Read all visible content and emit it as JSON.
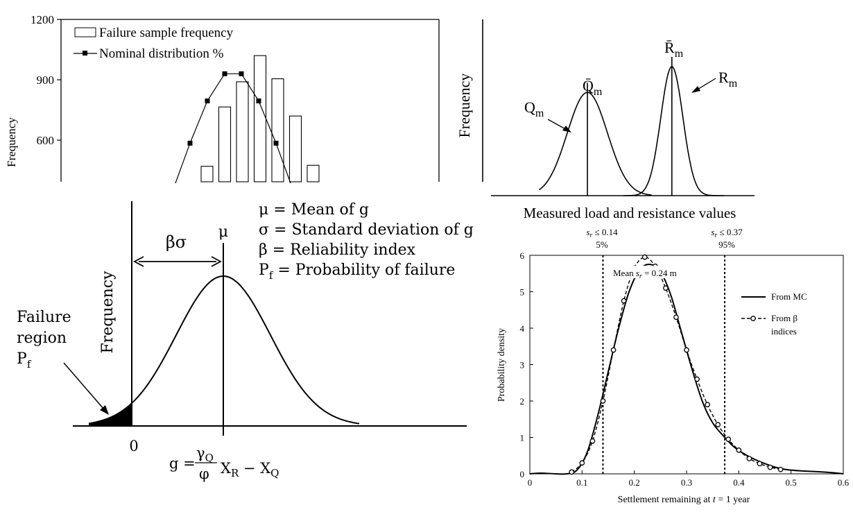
{
  "chart_data": [
    {
      "type": "bar",
      "ylabel": "Frequency",
      "y_ticks": [
        "1200",
        "900",
        "600"
      ],
      "ylim": [
        400,
        1200
      ],
      "legend_position": "top-left",
      "legend": {
        "bars": "Failure sample frequency",
        "line": "Nominal distribution %"
      },
      "series": [
        {
          "name": "Failure sample frequency",
          "kind": "bar",
          "values": [
            470,
            765,
            890,
            1020,
            905,
            720,
            475
          ]
        },
        {
          "name": "Nominal distribution %",
          "kind": "line",
          "values": [
            585,
            795,
            930,
            930,
            795,
            585
          ]
        }
      ]
    },
    {
      "type": "line",
      "ylabel": "Frequency",
      "xlabel": "Measured load and resistance values",
      "labels": {
        "q_mean": "Q̄",
        "r_mean": "R̄",
        "q_curve": "Q",
        "r_curve": "R",
        "subscript": "m"
      },
      "series": [
        {
          "name": "Qm",
          "mean": 0.3,
          "relative_peak": 0.8
        },
        {
          "name": "Rm",
          "mean": 0.72,
          "relative_peak": 1.0
        }
      ]
    },
    {
      "type": "area",
      "ylabel": "Frequency",
      "x_origin_label": "0",
      "mean_label": "μ",
      "bs_label": "βσ",
      "definitions": [
        "μ = Mean of g",
        "σ = Standard deviation of g",
        "β = Reliability index",
        "P",
        "f",
        " = Probability of failure"
      ],
      "failure_region": {
        "line1": "Failure",
        "line2": "region",
        "p": "P",
        "sub": "f"
      },
      "formula": {
        "g": "g =",
        "gamma": "γ",
        "gamma_sub": "Q",
        "phi": "φ",
        "x": "X",
        "x_sub_r": "R",
        "minus": " − X",
        "x_sub_q": "Q"
      }
    },
    {
      "type": "line",
      "xlabel_prefix": "Settlement remaining at ",
      "xlabel_t": "t",
      "xlabel_suffix": " = 1 year",
      "ylabel": "Probability density",
      "xlim": [
        0,
        0.6
      ],
      "ylim": [
        0,
        6
      ],
      "x_ticks": [
        "0",
        "0.1",
        "0.2",
        "0.3",
        "0.4",
        "0.5",
        "0.6"
      ],
      "y_ticks": [
        "0",
        "1",
        "2",
        "3",
        "4",
        "5",
        "6"
      ],
      "annotations": {
        "lower_s": "s",
        "lower_r": "r",
        "lower_val": " ≤ 0.14",
        "lower_pct": "5%",
        "upper_s": "s",
        "upper_r": "r",
        "upper_val": " ≤ 0.37",
        "upper_pct": "95%",
        "mean_a": "Mean ",
        "mean_s": "s",
        "mean_r": "r",
        "mean_b": " = 0.24 m"
      },
      "vlines": [
        0.14,
        0.373
      ],
      "legend_position": "right",
      "legend": {
        "mc": "From MC",
        "beta_line1": "From β",
        "beta_line2": "indices"
      },
      "series": [
        {
          "name": "From MC",
          "x": [
            0,
            0.02,
            0.05,
            0.07,
            0.09,
            0.11,
            0.13,
            0.15,
            0.17,
            0.19,
            0.21,
            0.23,
            0.25,
            0.27,
            0.29,
            0.31,
            0.33,
            0.35,
            0.37,
            0.39,
            0.41,
            0.43,
            0.45,
            0.47,
            0.49,
            0.52,
            0.55,
            0.58,
            0.6
          ],
          "y": [
            0,
            0.02,
            0.0,
            0.0,
            0.1,
            0.6,
            1.6,
            2.8,
            4.0,
            5.0,
            5.6,
            5.75,
            5.55,
            4.9,
            3.9,
            2.9,
            2.0,
            1.4,
            1.05,
            0.75,
            0.55,
            0.4,
            0.28,
            0.18,
            0.12,
            0.08,
            0.06,
            0.03,
            0.0
          ]
        },
        {
          "name": "From β indices",
          "x": [
            0.08,
            0.1,
            0.12,
            0.14,
            0.16,
            0.18,
            0.2,
            0.22,
            0.24,
            0.26,
            0.28,
            0.3,
            0.32,
            0.34,
            0.36,
            0.38,
            0.4,
            0.42,
            0.44,
            0.46,
            0.48
          ],
          "y": [
            0.05,
            0.3,
            0.9,
            2.0,
            3.4,
            4.75,
            5.65,
            5.95,
            5.7,
            5.1,
            4.3,
            3.4,
            2.6,
            1.9,
            1.35,
            0.95,
            0.65,
            0.42,
            0.28,
            0.18,
            0.12
          ]
        }
      ]
    }
  ]
}
